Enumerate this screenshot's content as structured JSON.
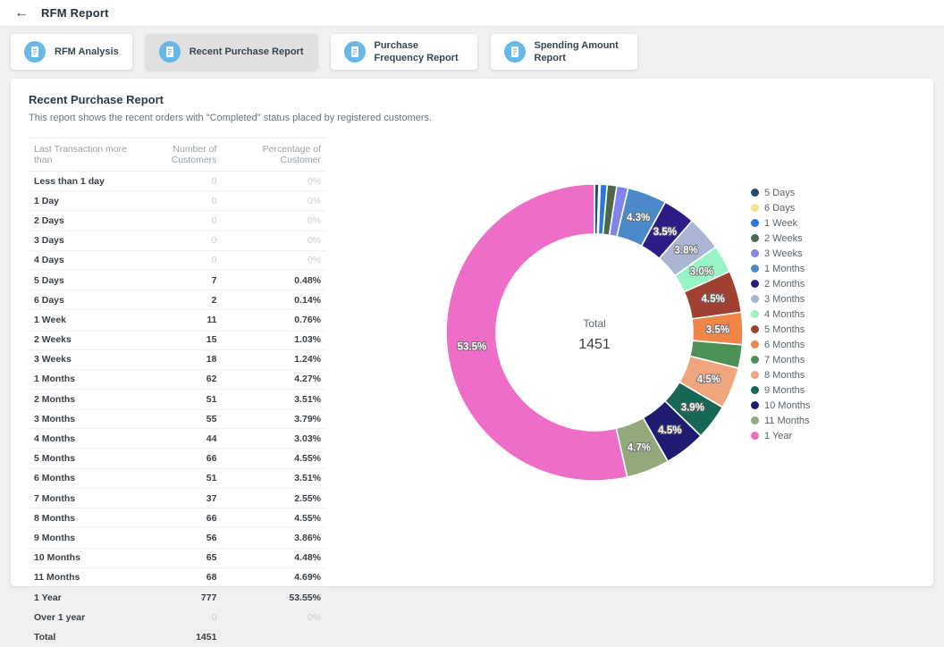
{
  "header": {
    "back_icon": "←",
    "title": "RFM Report"
  },
  "tabs": [
    {
      "label": "RFM Analysis",
      "active": false
    },
    {
      "label": "Recent Purchase Report",
      "active": true
    },
    {
      "label": "Purchase Frequency Report",
      "active": false
    },
    {
      "label": "Spending Amount Report",
      "active": false
    }
  ],
  "report": {
    "title": "Recent Purchase Report",
    "subtitle": "This report shows the recent orders with \"Completed\" status placed by registered customers.",
    "table": {
      "columns": [
        "Last Transaction more than",
        "Number of Customers",
        "Percentage of Customer"
      ],
      "rows": [
        {
          "label": "Less than 1 day",
          "customers": "0",
          "pct": "0%",
          "zero": true
        },
        {
          "label": "1 Day",
          "customers": "0",
          "pct": "0%",
          "zero": true
        },
        {
          "label": "2 Days",
          "customers": "0",
          "pct": "0%",
          "zero": true
        },
        {
          "label": "3 Days",
          "customers": "0",
          "pct": "0%",
          "zero": true
        },
        {
          "label": "4 Days",
          "customers": "0",
          "pct": "0%",
          "zero": true
        },
        {
          "label": "5 Days",
          "customers": "7",
          "pct": "0.48%",
          "zero": false
        },
        {
          "label": "6 Days",
          "customers": "2",
          "pct": "0.14%",
          "zero": false
        },
        {
          "label": "1 Week",
          "customers": "11",
          "pct": "0.76%",
          "zero": false
        },
        {
          "label": "2 Weeks",
          "customers": "15",
          "pct": "1.03%",
          "zero": false
        },
        {
          "label": "3 Weeks",
          "customers": "18",
          "pct": "1.24%",
          "zero": false
        },
        {
          "label": "1 Months",
          "customers": "62",
          "pct": "4.27%",
          "zero": false
        },
        {
          "label": "2 Months",
          "customers": "51",
          "pct": "3.51%",
          "zero": false
        },
        {
          "label": "3 Months",
          "customers": "55",
          "pct": "3.79%",
          "zero": false
        },
        {
          "label": "4 Months",
          "customers": "44",
          "pct": "3.03%",
          "zero": false
        },
        {
          "label": "5 Months",
          "customers": "66",
          "pct": "4.55%",
          "zero": false
        },
        {
          "label": "6 Months",
          "customers": "51",
          "pct": "3.51%",
          "zero": false
        },
        {
          "label": "7 Months",
          "customers": "37",
          "pct": "2.55%",
          "zero": false
        },
        {
          "label": "8 Months",
          "customers": "66",
          "pct": "4.55%",
          "zero": false
        },
        {
          "label": "9 Months",
          "customers": "56",
          "pct": "3.86%",
          "zero": false
        },
        {
          "label": "10 Months",
          "customers": "65",
          "pct": "4.48%",
          "zero": false
        },
        {
          "label": "11 Months",
          "customers": "68",
          "pct": "4.69%",
          "zero": false
        },
        {
          "label": "1 Year",
          "customers": "777",
          "pct": "53.55%",
          "zero": false
        },
        {
          "label": "Over 1 year",
          "customers": "0",
          "pct": "0%",
          "zero": true
        }
      ],
      "total": {
        "label": "Total",
        "customers": "1451"
      }
    }
  },
  "chart_data": {
    "type": "pie",
    "subtype": "donut",
    "center_label": "Total",
    "center_value": "1451",
    "total": 1451,
    "legend_position": "right",
    "start_angle_deg": 0,
    "direction": "clockwise",
    "series": [
      {
        "name": "5 Days",
        "value": 7,
        "pct": "0.48%",
        "color": "#1d4e74",
        "label": ""
      },
      {
        "name": "6 Days",
        "value": 2,
        "pct": "0.14%",
        "color": "#f2e394",
        "label": ""
      },
      {
        "name": "1 Week",
        "value": 11,
        "pct": "0.76%",
        "color": "#2878dd",
        "label": ""
      },
      {
        "name": "2 Weeks",
        "value": 15,
        "pct": "1.03%",
        "color": "#4c6a4b",
        "label": ""
      },
      {
        "name": "3 Weeks",
        "value": 18,
        "pct": "1.24%",
        "color": "#8184ea",
        "label": ""
      },
      {
        "name": "1 Months",
        "value": 62,
        "pct": "4.27%",
        "color": "#4b8ac9",
        "label": "4.3%"
      },
      {
        "name": "2 Months",
        "value": 51,
        "pct": "3.51%",
        "color": "#2b1d85",
        "label": "3.5%"
      },
      {
        "name": "3 Months",
        "value": 55,
        "pct": "3.79%",
        "color": "#a9b5d2",
        "label": "3.8%"
      },
      {
        "name": "4 Months",
        "value": 44,
        "pct": "3.03%",
        "color": "#97f4c5",
        "label": "3.0%"
      },
      {
        "name": "5 Months",
        "value": 66,
        "pct": "4.55%",
        "color": "#9e4130",
        "label": "4.5%"
      },
      {
        "name": "6 Months",
        "value": 51,
        "pct": "3.51%",
        "color": "#f0854a",
        "label": "3.5%"
      },
      {
        "name": "7 Months",
        "value": 37,
        "pct": "2.55%",
        "color": "#4e9156",
        "label": ""
      },
      {
        "name": "8 Months",
        "value": 66,
        "pct": "4.55%",
        "color": "#efa67f",
        "label": "4.5%"
      },
      {
        "name": "9 Months",
        "value": 56,
        "pct": "3.86%",
        "color": "#176757",
        "label": "3.9%"
      },
      {
        "name": "10 Months",
        "value": 65,
        "pct": "4.48%",
        "color": "#1e1b70",
        "label": "4.5%"
      },
      {
        "name": "11 Months",
        "value": 68,
        "pct": "4.69%",
        "color": "#93a87b",
        "label": "4.7%"
      },
      {
        "name": "1 Year",
        "value": 777,
        "pct": "53.55%",
        "color": "#ee6dc8",
        "label": "53.5%"
      }
    ]
  }
}
